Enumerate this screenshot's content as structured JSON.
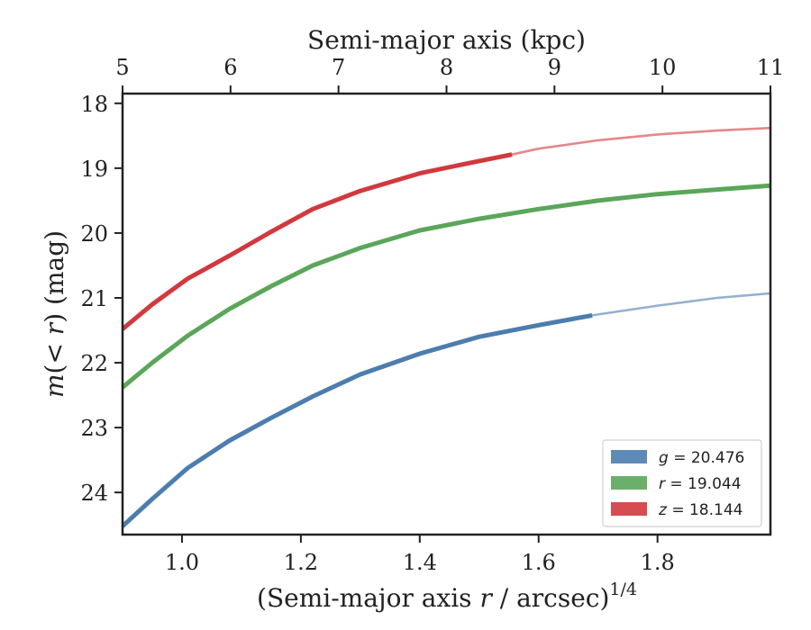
{
  "chart_data": {
    "type": "line",
    "top_axis": {
      "label": "Semi-major axis (kpc)",
      "ticks": [
        5,
        6,
        7,
        8,
        9,
        10,
        11
      ],
      "range": [
        5,
        11
      ]
    },
    "bottom_axis": {
      "label_prefix": "(Semi-major axis ",
      "label_var": "r",
      "label_suffix": " / arcsec)",
      "label_sup": "1/4",
      "ticks": [
        "1.0",
        "1.2",
        "1.4",
        "1.6",
        "1.8"
      ],
      "range": [
        0.9,
        1.99
      ]
    },
    "left_axis": {
      "label_var": "m",
      "label_mid": "(< ",
      "label_var2": "r",
      "label_end": ") (mag)",
      "ticks": [
        18,
        19,
        20,
        21,
        22,
        23,
        24
      ],
      "range": [
        17.85,
        24.65
      ],
      "inverted": true
    },
    "series": [
      {
        "name": "g",
        "value": "20.476",
        "color": "#4c7daf",
        "data_end": 1.69,
        "points": [
          [
            0.9,
            24.52
          ],
          [
            0.95,
            24.1
          ],
          [
            1.01,
            23.62
          ],
          [
            1.08,
            23.2
          ],
          [
            1.15,
            22.85
          ],
          [
            1.22,
            22.52
          ],
          [
            1.3,
            22.18
          ],
          [
            1.4,
            21.86
          ],
          [
            1.5,
            21.6
          ],
          [
            1.6,
            21.42
          ],
          [
            1.69,
            21.27
          ],
          [
            1.8,
            21.12
          ],
          [
            1.9,
            21.0
          ],
          [
            1.99,
            20.93
          ]
        ]
      },
      {
        "name": "r",
        "value": "19.044",
        "color": "#5aa65a",
        "data_end": 1.99,
        "points": [
          [
            0.9,
            22.38
          ],
          [
            0.95,
            22.0
          ],
          [
            1.01,
            21.58
          ],
          [
            1.08,
            21.17
          ],
          [
            1.15,
            20.82
          ],
          [
            1.22,
            20.5
          ],
          [
            1.3,
            20.23
          ],
          [
            1.4,
            19.96
          ],
          [
            1.5,
            19.78
          ],
          [
            1.6,
            19.63
          ],
          [
            1.7,
            19.5
          ],
          [
            1.8,
            19.4
          ],
          [
            1.9,
            19.33
          ],
          [
            1.99,
            19.27
          ]
        ]
      },
      {
        "name": "z",
        "value": "18.144",
        "color": "#d1393e",
        "data_end": 1.555,
        "points": [
          [
            0.9,
            21.48
          ],
          [
            0.95,
            21.1
          ],
          [
            1.01,
            20.7
          ],
          [
            1.08,
            20.35
          ],
          [
            1.15,
            19.98
          ],
          [
            1.22,
            19.63
          ],
          [
            1.3,
            19.35
          ],
          [
            1.4,
            19.08
          ],
          [
            1.5,
            18.89
          ],
          [
            1.555,
            18.79
          ],
          [
            1.6,
            18.7
          ],
          [
            1.7,
            18.57
          ],
          [
            1.8,
            18.48
          ],
          [
            1.9,
            18.42
          ],
          [
            1.99,
            18.38
          ]
        ]
      }
    ],
    "legend": {
      "placement": "bottom-right",
      "entries": [
        {
          "var": "g",
          "text": " = 20.476"
        },
        {
          "var": "r",
          "text": " = 19.044"
        },
        {
          "var": "z",
          "text": " = 18.144"
        }
      ]
    },
    "grid": false
  }
}
